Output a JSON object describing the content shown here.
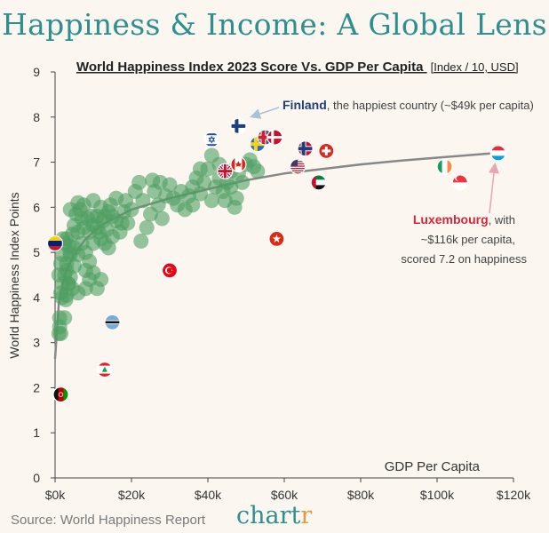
{
  "header": {
    "title": "Happiness & Income: A Global Lens"
  },
  "footer": {
    "source": "Source: World Happiness Report",
    "logo_main": "chart",
    "logo_accent": "r"
  },
  "chart_data": {
    "type": "scatter",
    "subtitle": "World Happiness Index 2023 Score Vs. GDP Per Capita",
    "subtitle_units": "[Index / 10, USD]",
    "xlabel": "GDP Per Capita",
    "ylabel": "World Happiness Index Points",
    "xlim": [
      0,
      120000
    ],
    "ylim": [
      0,
      9
    ],
    "x_ticks": [
      "$0k",
      "$20k",
      "$40k",
      "$60k",
      "$80k",
      "$100k",
      "$120k"
    ],
    "y_ticks": [
      "0",
      "1",
      "2",
      "3",
      "4",
      "5",
      "6",
      "7",
      "8",
      "9"
    ],
    "grid": false,
    "colors": {
      "points": "#4e9e62",
      "trend": "#888888",
      "finland": "#1f3f7a",
      "luxembourg": "#d4283a"
    },
    "trendline": {
      "type": "logarithmic",
      "points": [
        [
          0,
          2.65
        ],
        [
          1000,
          3.9
        ],
        [
          2000,
          4.3
        ],
        [
          3000,
          4.6
        ],
        [
          5000,
          4.95
        ],
        [
          8000,
          5.3
        ],
        [
          12000,
          5.6
        ],
        [
          20000,
          5.95
        ],
        [
          30000,
          6.2
        ],
        [
          40000,
          6.4
        ],
        [
          50000,
          6.6
        ],
        [
          60000,
          6.75
        ],
        [
          70000,
          6.85
        ],
        [
          80000,
          6.95
        ],
        [
          90000,
          7.03
        ],
        [
          100000,
          7.1
        ],
        [
          115000,
          7.2
        ]
      ]
    },
    "series": [
      {
        "points": [
          [
            1000,
            3.2
          ],
          [
            1500,
            3.2
          ],
          [
            1200,
            3.55
          ],
          [
            2500,
            3.55
          ],
          [
            1800,
            4.0
          ],
          [
            3000,
            4.05
          ],
          [
            2000,
            4.3
          ],
          [
            3500,
            4.3
          ],
          [
            1000,
            4.5
          ],
          [
            2500,
            4.5
          ],
          [
            4000,
            4.45
          ],
          [
            1500,
            4.75
          ],
          [
            3000,
            4.75
          ],
          [
            5000,
            4.7
          ],
          [
            2000,
            4.95
          ],
          [
            4000,
            4.95
          ],
          [
            6000,
            4.95
          ],
          [
            2500,
            5.2
          ],
          [
            3500,
            5.15
          ],
          [
            5000,
            5.1
          ],
          [
            7000,
            5.2
          ],
          [
            8000,
            5.0
          ],
          [
            9000,
            4.8
          ],
          [
            10000,
            4.55
          ],
          [
            12000,
            4.4
          ],
          [
            11000,
            4.2
          ],
          [
            8000,
            4.2
          ],
          [
            6000,
            4.1
          ],
          [
            4500,
            4.2
          ],
          [
            3500,
            4.3
          ],
          [
            3000,
            5.3
          ],
          [
            4500,
            5.4
          ],
          [
            6000,
            5.45
          ],
          [
            7500,
            5.55
          ],
          [
            9000,
            5.45
          ],
          [
            10000,
            5.6
          ],
          [
            11000,
            5.55
          ],
          [
            12000,
            5.3
          ],
          [
            13000,
            5.2
          ],
          [
            14000,
            5.1
          ],
          [
            15000,
            5.35
          ],
          [
            13500,
            5.5
          ],
          [
            12500,
            5.7
          ],
          [
            11000,
            5.8
          ],
          [
            9500,
            5.8
          ],
          [
            8500,
            5.75
          ],
          [
            7000,
            5.75
          ],
          [
            5500,
            5.85
          ],
          [
            4000,
            5.95
          ],
          [
            6000,
            6.1
          ],
          [
            7500,
            6.05
          ],
          [
            10000,
            6.15
          ],
          [
            12000,
            6.0
          ],
          [
            14000,
            5.9
          ],
          [
            15000,
            5.8
          ],
          [
            16000,
            5.7
          ],
          [
            17000,
            5.45
          ],
          [
            17500,
            5.65
          ],
          [
            18000,
            5.9
          ],
          [
            18500,
            6.15
          ],
          [
            20000,
            5.95
          ],
          [
            21000,
            6.35
          ],
          [
            22000,
            6.55
          ],
          [
            23000,
            6.15
          ],
          [
            24000,
            5.55
          ],
          [
            25000,
            5.85
          ],
          [
            26000,
            6.35
          ],
          [
            27000,
            6.05
          ],
          [
            28000,
            5.75
          ],
          [
            29000,
            6.25
          ],
          [
            30000,
            6.5
          ],
          [
            31000,
            6.2
          ],
          [
            32000,
            6.05
          ],
          [
            33000,
            6.35
          ],
          [
            34000,
            5.95
          ],
          [
            35000,
            6.25
          ],
          [
            36000,
            6.45
          ],
          [
            37000,
            6.65
          ],
          [
            38000,
            6.3
          ],
          [
            39000,
            6.55
          ],
          [
            40000,
            6.85
          ],
          [
            41000,
            6.15
          ],
          [
            42000,
            6.45
          ],
          [
            43000,
            6.65
          ],
          [
            44000,
            6.35
          ],
          [
            45000,
            6.55
          ],
          [
            46000,
            6.45
          ],
          [
            47000,
            6.0
          ],
          [
            48000,
            6.75
          ],
          [
            49000,
            6.55
          ],
          [
            50000,
            6.95
          ],
          [
            51000,
            7.05
          ],
          [
            52000,
            6.9
          ],
          [
            53000,
            6.8
          ],
          [
            5000,
            5.6
          ],
          [
            6500,
            5.95
          ],
          [
            3000,
            4.6
          ],
          [
            4000,
            5.0
          ],
          [
            2000,
            5.3
          ],
          [
            1500,
            4.1
          ],
          [
            8000,
            4.6
          ],
          [
            9000,
            4.4
          ],
          [
            10000,
            5.2
          ],
          [
            11500,
            5.45
          ],
          [
            13000,
            5.8
          ],
          [
            14500,
            6.05
          ],
          [
            16000,
            6.2
          ],
          [
            19000,
            5.65
          ],
          [
            22500,
            5.25
          ],
          [
            25500,
            6.6
          ],
          [
            27500,
            6.55
          ],
          [
            36000,
            6.05
          ],
          [
            38000,
            6.85
          ],
          [
            41000,
            7.15
          ],
          [
            43000,
            6.95
          ],
          [
            44500,
            6.15
          ],
          [
            46000,
            6.8
          ],
          [
            47500,
            6.2
          ],
          [
            1200,
            3.35
          ],
          [
            2800,
            3.95
          ]
        ]
      }
    ],
    "flags": [
      {
        "country": "Finland",
        "icon": "finland-flag-icon",
        "x": 48000,
        "y": 7.8
      },
      {
        "country": "Israel",
        "icon": "israel-flag-icon",
        "x": 41000,
        "y": 7.5
      },
      {
        "country": "Sweden",
        "icon": "sweden-flag-icon",
        "x": 53000,
        "y": 7.4
      },
      {
        "country": "Iceland",
        "icon": "iceland-flag-icon",
        "x": 55000,
        "y": 7.55
      },
      {
        "country": "Denmark",
        "icon": "denmark-flag-icon",
        "x": 57500,
        "y": 7.55
      },
      {
        "country": "Norway",
        "icon": "norway-flag-icon",
        "x": 65500,
        "y": 7.3
      },
      {
        "country": "Switzerland",
        "icon": "switzerland-flag-icon",
        "x": 71000,
        "y": 7.25
      },
      {
        "country": "Canada",
        "icon": "canada-flag-icon",
        "x": 48000,
        "y": 6.95
      },
      {
        "country": "United Kingdom",
        "icon": "uk-flag-icon",
        "x": 44500,
        "y": 6.8
      },
      {
        "country": "United States",
        "icon": "us-flag-icon",
        "x": 63500,
        "y": 6.9
      },
      {
        "country": "United Arab Emirates",
        "icon": "uae-flag-icon",
        "x": 69000,
        "y": 6.55
      },
      {
        "country": "Ireland",
        "icon": "ireland-flag-icon",
        "x": 102000,
        "y": 6.9
      },
      {
        "country": "Singapore",
        "icon": "singapore-flag-icon",
        "x": 106000,
        "y": 6.55
      },
      {
        "country": "Luxembourg",
        "icon": "luxembourg-flag-icon",
        "x": 116000,
        "y": 7.2
      },
      {
        "country": "Hong Kong",
        "icon": "hongkong-flag-icon",
        "x": 58000,
        "y": 5.3
      },
      {
        "country": "Turkey",
        "icon": "turkey-flag-icon",
        "x": 30000,
        "y": 4.6
      },
      {
        "country": "Botswana",
        "icon": "botswana-flag-icon",
        "x": 15000,
        "y": 3.45
      },
      {
        "country": "Lebanon",
        "icon": "lebanon-flag-icon",
        "x": 13000,
        "y": 2.4
      },
      {
        "country": "Afghanistan",
        "icon": "afghanistan-flag-icon",
        "x": 1500,
        "y": 1.85
      },
      {
        "country": "Venezuela",
        "icon": "venezuela-flag-icon",
        "x": 0,
        "y": 5.2
      }
    ],
    "annotations": {
      "finland": {
        "bold": "Finland",
        "rest": ", the happiest country (~$49k per capita)"
      },
      "luxembourg": {
        "line1_bold": "Luxembourg",
        "line1_rest": ", with",
        "line2": "~$116k per capita,",
        "line3": "scored 7.2 on happiness"
      }
    }
  }
}
